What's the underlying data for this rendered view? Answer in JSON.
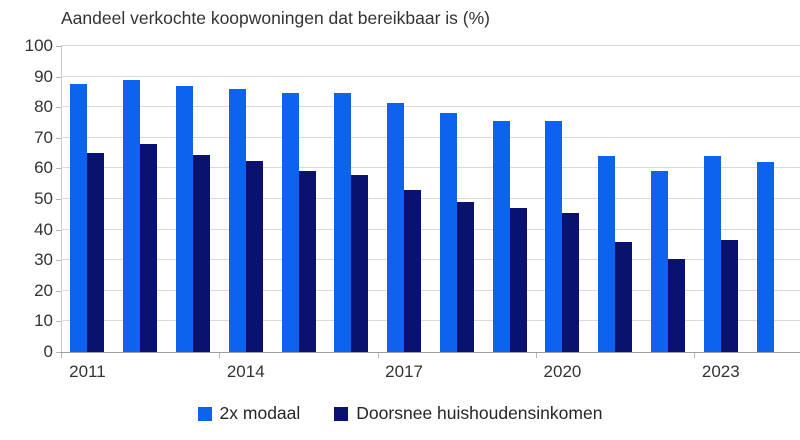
{
  "title": "Aandeel verkochte koopwoningen dat bereikbaar is (%)",
  "colors": {
    "series_light_blue": "#0e63ee",
    "series_dark_navy": "#0a1270",
    "gridline": "#d9d9d9",
    "axis_line": "#9e9e9e",
    "text": "#333333"
  },
  "chart_data": {
    "type": "bar",
    "title": "Aandeel verkochte koopwoningen dat bereikbaar is (%)",
    "categories": [
      "2011",
      "2012",
      "2013",
      "2014",
      "2015",
      "2016",
      "2017",
      "2018",
      "2019",
      "2020",
      "2021",
      "2022",
      "2023",
      "2024"
    ],
    "series": [
      {
        "name": "2x modaal",
        "color": "#0e63ee",
        "values": [
          87.5,
          89,
          87,
          86,
          84.5,
          84.5,
          81.5,
          78,
          75.5,
          75.5,
          64,
          59,
          64,
          62
        ]
      },
      {
        "name": "Doorsnee huishoudensinkomen",
        "color": "#0a1270",
        "values": [
          65,
          68,
          64.5,
          62.5,
          59,
          58,
          53,
          49,
          47,
          45.5,
          36,
          30.5,
          36.5,
          null
        ]
      }
    ],
    "xlabel": "",
    "ylabel": "",
    "ylim": [
      0,
      100
    ],
    "ytick_step": 10,
    "ytick_labels": [
      "0",
      "10",
      "20",
      "30",
      "40",
      "50",
      "60",
      "70",
      "80",
      "90",
      "100"
    ],
    "xtick_labels": [
      "2011",
      "2014",
      "2017",
      "2020",
      "2023"
    ],
    "xtick_group_indices": [
      0,
      3,
      6,
      9,
      12
    ],
    "grid": true,
    "legend_position": "bottom"
  }
}
